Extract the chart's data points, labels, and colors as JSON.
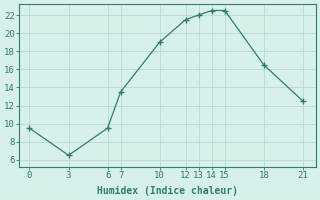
{
  "x": [
    0,
    3,
    6,
    7,
    10,
    12,
    13,
    14,
    15,
    18,
    21
  ],
  "y": [
    9.5,
    6.5,
    9.5,
    13.5,
    19.0,
    21.5,
    22.0,
    22.5,
    22.5,
    16.5,
    12.5
  ],
  "line_color": "#2e7d6e",
  "marker_color": "#2e7d6e",
  "bg_color": "#d8f0ec",
  "grid_color": "#b8d8d4",
  "xlabel": "Humidex (Indice chaleur)",
  "xticks": [
    0,
    3,
    6,
    7,
    10,
    12,
    13,
    14,
    15,
    18,
    21
  ],
  "yticks": [
    6,
    8,
    10,
    12,
    14,
    16,
    18,
    20,
    22
  ],
  "xlim": [
    -0.8,
    22.0
  ],
  "ylim": [
    5.2,
    23.2
  ],
  "xlabel_fontsize": 7,
  "tick_fontsize": 6.5
}
